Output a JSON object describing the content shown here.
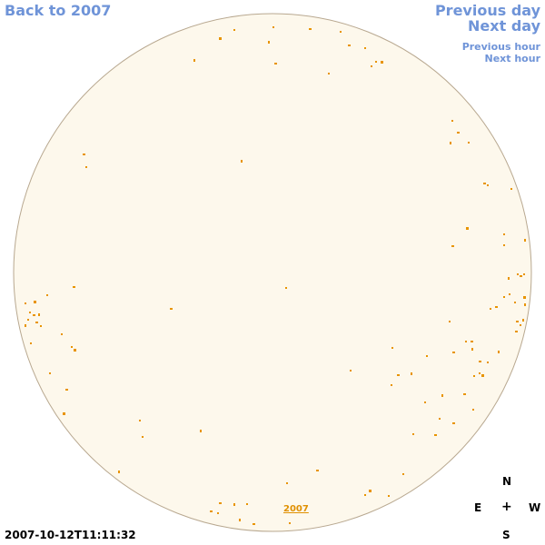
{
  "nav": {
    "back_label": "Back to 2007",
    "prev_day_label": "Previous day",
    "next_day_label": "Next day",
    "prev_hour_label": "Previous hour",
    "next_hour_label": "Next hour"
  },
  "disk": {
    "fill_color": "#fdf8ec",
    "border_color": "#b8a890",
    "spot_color": "#e89400"
  },
  "year_link": "2007",
  "timestamp": "2007-10-12T11:11:32",
  "compass": {
    "north": "N",
    "east": "E",
    "center": "+",
    "west": "W",
    "south": "S"
  }
}
